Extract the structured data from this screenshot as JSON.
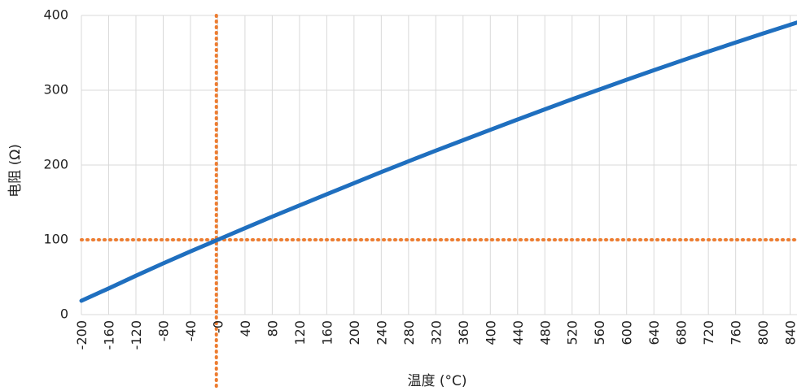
{
  "chart_data": {
    "type": "line",
    "xlabel": "温度 (°C)",
    "ylabel": "电阻 (Ω)",
    "xlim": [
      -200,
      850
    ],
    "ylim": [
      0,
      400
    ],
    "y_ticks": [
      0,
      100,
      200,
      300,
      400
    ],
    "x_tick_labels": [
      "-200",
      "-160",
      "-120",
      "-80",
      "-40",
      "-0",
      "40",
      "80",
      "120",
      "160",
      "200",
      "240",
      "280",
      "320",
      "360",
      "400",
      "440",
      "480",
      "520",
      "560",
      "600",
      "640",
      "680",
      "720",
      "760",
      "800",
      "840"
    ],
    "x_tick_values": [
      -200,
      -160,
      -120,
      -80,
      -40,
      0,
      40,
      80,
      120,
      160,
      200,
      240,
      280,
      320,
      360,
      400,
      440,
      480,
      520,
      560,
      600,
      640,
      680,
      720,
      760,
      800,
      840
    ],
    "grid": true,
    "series": [
      {
        "color": "#1F6FBF",
        "x": [
          -200,
          -160,
          -120,
          -80,
          -40,
          0,
          40,
          80,
          120,
          160,
          200,
          240,
          280,
          320,
          360,
          400,
          440,
          480,
          520,
          560,
          600,
          640,
          680,
          720,
          760,
          800,
          850
        ],
        "y": [
          18.5,
          35,
          52,
          68.5,
          84.5,
          100,
          115.5,
          131,
          146,
          161,
          175.8,
          190.5,
          205,
          219.2,
          233.2,
          247.1,
          260.9,
          274.5,
          287.9,
          301,
          314,
          326.7,
          339.3,
          351.7,
          363.8,
          375.8,
          390.5
        ]
      }
    ],
    "reference_lines": [
      {
        "axis": "x",
        "value": -2,
        "color": "#ED7D31",
        "style": "dotted"
      },
      {
        "axis": "y",
        "value": 100,
        "color": "#ED7D31",
        "style": "dotted"
      }
    ]
  }
}
